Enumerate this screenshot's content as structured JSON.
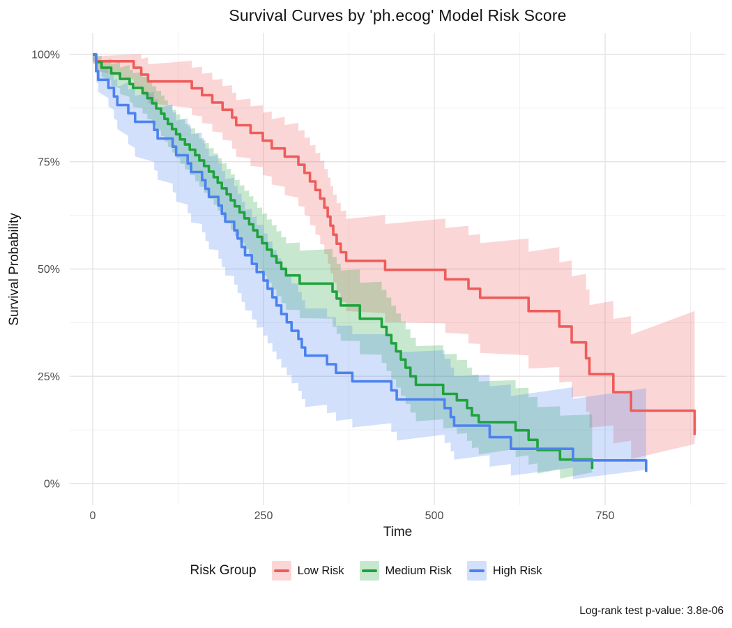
{
  "title": "Survival Curves by 'ph.ecog' Model Risk Score",
  "caption": "Log-rank test p-value: 3.8e-06",
  "axes": {
    "x": {
      "label": "Time",
      "tick_labels": [
        "0",
        "250",
        "500",
        "750"
      ]
    },
    "y": {
      "label": "Survival Probability",
      "tick_labels": [
        "0%",
        "25%",
        "50%",
        "75%",
        "100%"
      ]
    }
  },
  "legend": {
    "title": "Risk Group",
    "items": [
      {
        "label": "Low Risk",
        "color": "#EE5C5A"
      },
      {
        "label": "Medium Risk",
        "color": "#1FA23C"
      },
      {
        "label": "High Risk",
        "color": "#4C82EE"
      }
    ]
  },
  "chart_data": {
    "type": "line",
    "subtype": "kaplan_meier_step",
    "title": "Survival Curves by 'ph.ecog' Model Risk Score",
    "xlabel": "Time",
    "ylabel": "Survival Probability",
    "x_major_ticks": [
      0,
      250,
      500,
      750
    ],
    "x_minor_ticks": [
      125,
      375,
      625,
      875
    ],
    "y_major_ticks": [
      0,
      25,
      50,
      75,
      100
    ],
    "y_minor_ticks": [
      12.5,
      37.5,
      62.5,
      87.5
    ],
    "y_tick_format": "percent",
    "grid": true,
    "legend_position": "bottom",
    "band_alpha": 0.25,
    "major_grid_color": "#e4e4e4",
    "minor_grid_color": "#f1f1f1",
    "series": [
      {
        "name": "Low Risk",
        "color": "#EE5C5A",
        "steps": [
          [
            5,
            98.4
          ],
          [
            60,
            96.9
          ],
          [
            71,
            95.3
          ],
          [
            81,
            93.7
          ],
          [
            145,
            92.1
          ],
          [
            160,
            90.5
          ],
          [
            175,
            88.8
          ],
          [
            190,
            87.1
          ],
          [
            204,
            85.3
          ],
          [
            210,
            83.5
          ],
          [
            231,
            81.7
          ],
          [
            249,
            79.9
          ],
          [
            262,
            78.1
          ],
          [
            281,
            76.2
          ],
          [
            301,
            74.3
          ],
          [
            310,
            72.4
          ],
          [
            318,
            70.4
          ],
          [
            326,
            68.4
          ],
          [
            333,
            66.4
          ],
          [
            339,
            64.3
          ],
          [
            344,
            62.2
          ],
          [
            348,
            60.1
          ],
          [
            352,
            58.0
          ],
          [
            357,
            55.9
          ],
          [
            363,
            53.9
          ],
          [
            371,
            51.9
          ],
          [
            428,
            49.8
          ],
          [
            516,
            47.6
          ],
          [
            550,
            45.4
          ],
          [
            567,
            43.3
          ],
          [
            638,
            40.2
          ],
          [
            683,
            36.6
          ],
          [
            701,
            32.9
          ],
          [
            722,
            29.2
          ],
          [
            727,
            25.5
          ],
          [
            762,
            21.3
          ],
          [
            788,
            17.0
          ],
          [
            881,
            11.3
          ]
        ],
        "ci_offsets": [
          [
            0,
            2,
            1
          ],
          [
            80,
            5,
            4
          ],
          [
            160,
            6.5,
            5
          ],
          [
            250,
            8,
            6.5
          ],
          [
            380,
            12,
            10
          ],
          [
            520,
            12.5,
            12
          ],
          [
            650,
            13.5,
            14
          ],
          [
            760,
            12,
            17
          ],
          [
            800,
            11,
            18
          ],
          [
            881,
            7.8,
            23.2
          ]
        ]
      },
      {
        "name": "Medium Risk",
        "color": "#1FA23C",
        "steps": [
          [
            5,
            98.2
          ],
          [
            13,
            96.9
          ],
          [
            27,
            95.6
          ],
          [
            40,
            94.3
          ],
          [
            54,
            93.1
          ],
          [
            59,
            92.2
          ],
          [
            73,
            91.0
          ],
          [
            80,
            89.8
          ],
          [
            87,
            88.6
          ],
          [
            93,
            87.4
          ],
          [
            100,
            86.2
          ],
          [
            105,
            85.0
          ],
          [
            110,
            83.8
          ],
          [
            116,
            82.6
          ],
          [
            122,
            81.4
          ],
          [
            128,
            80.2
          ],
          [
            135,
            79.0
          ],
          [
            142,
            77.8
          ],
          [
            150,
            76.5
          ],
          [
            156,
            75.3
          ],
          [
            163,
            74.0
          ],
          [
            170,
            72.7
          ],
          [
            177,
            71.4
          ],
          [
            183,
            70.1
          ],
          [
            189,
            68.8
          ],
          [
            196,
            67.4
          ],
          [
            202,
            66.0
          ],
          [
            208,
            64.6
          ],
          [
            215,
            63.2
          ],
          [
            222,
            61.8
          ],
          [
            229,
            60.4
          ],
          [
            235,
            59.0
          ],
          [
            241,
            57.5
          ],
          [
            248,
            56.0
          ],
          [
            255,
            54.5
          ],
          [
            262,
            53.0
          ],
          [
            269,
            51.5
          ],
          [
            276,
            50.0
          ],
          [
            283,
            48.5
          ],
          [
            303,
            46.6
          ],
          [
            351,
            44.7
          ],
          [
            357,
            43.1
          ],
          [
            363,
            41.5
          ],
          [
            391,
            38.4
          ],
          [
            423,
            36.5
          ],
          [
            430,
            34.6
          ],
          [
            437,
            32.7
          ],
          [
            444,
            30.8
          ],
          [
            451,
            28.9
          ],
          [
            458,
            27.0
          ],
          [
            465,
            25.0
          ],
          [
            473,
            23.0
          ],
          [
            513,
            20.9
          ],
          [
            533,
            19.4
          ],
          [
            548,
            17.6
          ],
          [
            555,
            15.9
          ],
          [
            565,
            14.3
          ],
          [
            619,
            12.4
          ],
          [
            638,
            10.2
          ],
          [
            651,
            7.8
          ],
          [
            684,
            5.6
          ],
          [
            731,
            3.4
          ]
        ],
        "ci_offsets": [
          [
            0,
            1.5,
            1
          ],
          [
            60,
            4.5,
            3.5
          ],
          [
            150,
            6,
            5
          ],
          [
            283,
            8,
            7.5
          ],
          [
            470,
            8.5,
            9
          ],
          [
            565,
            7.5,
            9.5
          ],
          [
            651,
            5.5,
            10
          ],
          [
            731,
            3,
            10.5
          ]
        ]
      },
      {
        "name": "High Risk",
        "color": "#4C82EE",
        "steps": [
          [
            5,
            96.1
          ],
          [
            8,
            94.1
          ],
          [
            23,
            92.2
          ],
          [
            31,
            90.2
          ],
          [
            36,
            88.2
          ],
          [
            52,
            86.3
          ],
          [
            62,
            84.3
          ],
          [
            90,
            82.4
          ],
          [
            95,
            80.4
          ],
          [
            117,
            78.5
          ],
          [
            122,
            76.5
          ],
          [
            139,
            74.6
          ],
          [
            144,
            72.6
          ],
          [
            160,
            70.7
          ],
          [
            165,
            68.7
          ],
          [
            170,
            66.8
          ],
          [
            184,
            64.8
          ],
          [
            189,
            62.9
          ],
          [
            194,
            61.0
          ],
          [
            207,
            59.0
          ],
          [
            212,
            57.1
          ],
          [
            218,
            55.1
          ],
          [
            223,
            53.2
          ],
          [
            233,
            51.2
          ],
          [
            240,
            49.3
          ],
          [
            250,
            47.3
          ],
          [
            256,
            45.4
          ],
          [
            263,
            43.4
          ],
          [
            269,
            41.5
          ],
          [
            276,
            39.5
          ],
          [
            284,
            37.6
          ],
          [
            291,
            35.6
          ],
          [
            301,
            33.7
          ],
          [
            306,
            31.7
          ],
          [
            311,
            29.8
          ],
          [
            343,
            27.8
          ],
          [
            356,
            25.8
          ],
          [
            380,
            23.8
          ],
          [
            437,
            21.7
          ],
          [
            445,
            19.6
          ],
          [
            515,
            17.6
          ],
          [
            524,
            15.5
          ],
          [
            529,
            13.5
          ],
          [
            581,
            10.8
          ],
          [
            612,
            8.1
          ],
          [
            703,
            5.4
          ],
          [
            810,
            2.7
          ]
        ],
        "ci_offsets": [
          [
            0,
            2,
            1.5
          ],
          [
            60,
            8,
            6
          ],
          [
            150,
            12,
            9
          ],
          [
            240,
            13,
            11
          ],
          [
            310,
            12,
            11
          ],
          [
            450,
            9.5,
            11
          ],
          [
            600,
            6.5,
            12
          ],
          [
            810,
            2.2,
            16.8
          ]
        ]
      }
    ]
  }
}
